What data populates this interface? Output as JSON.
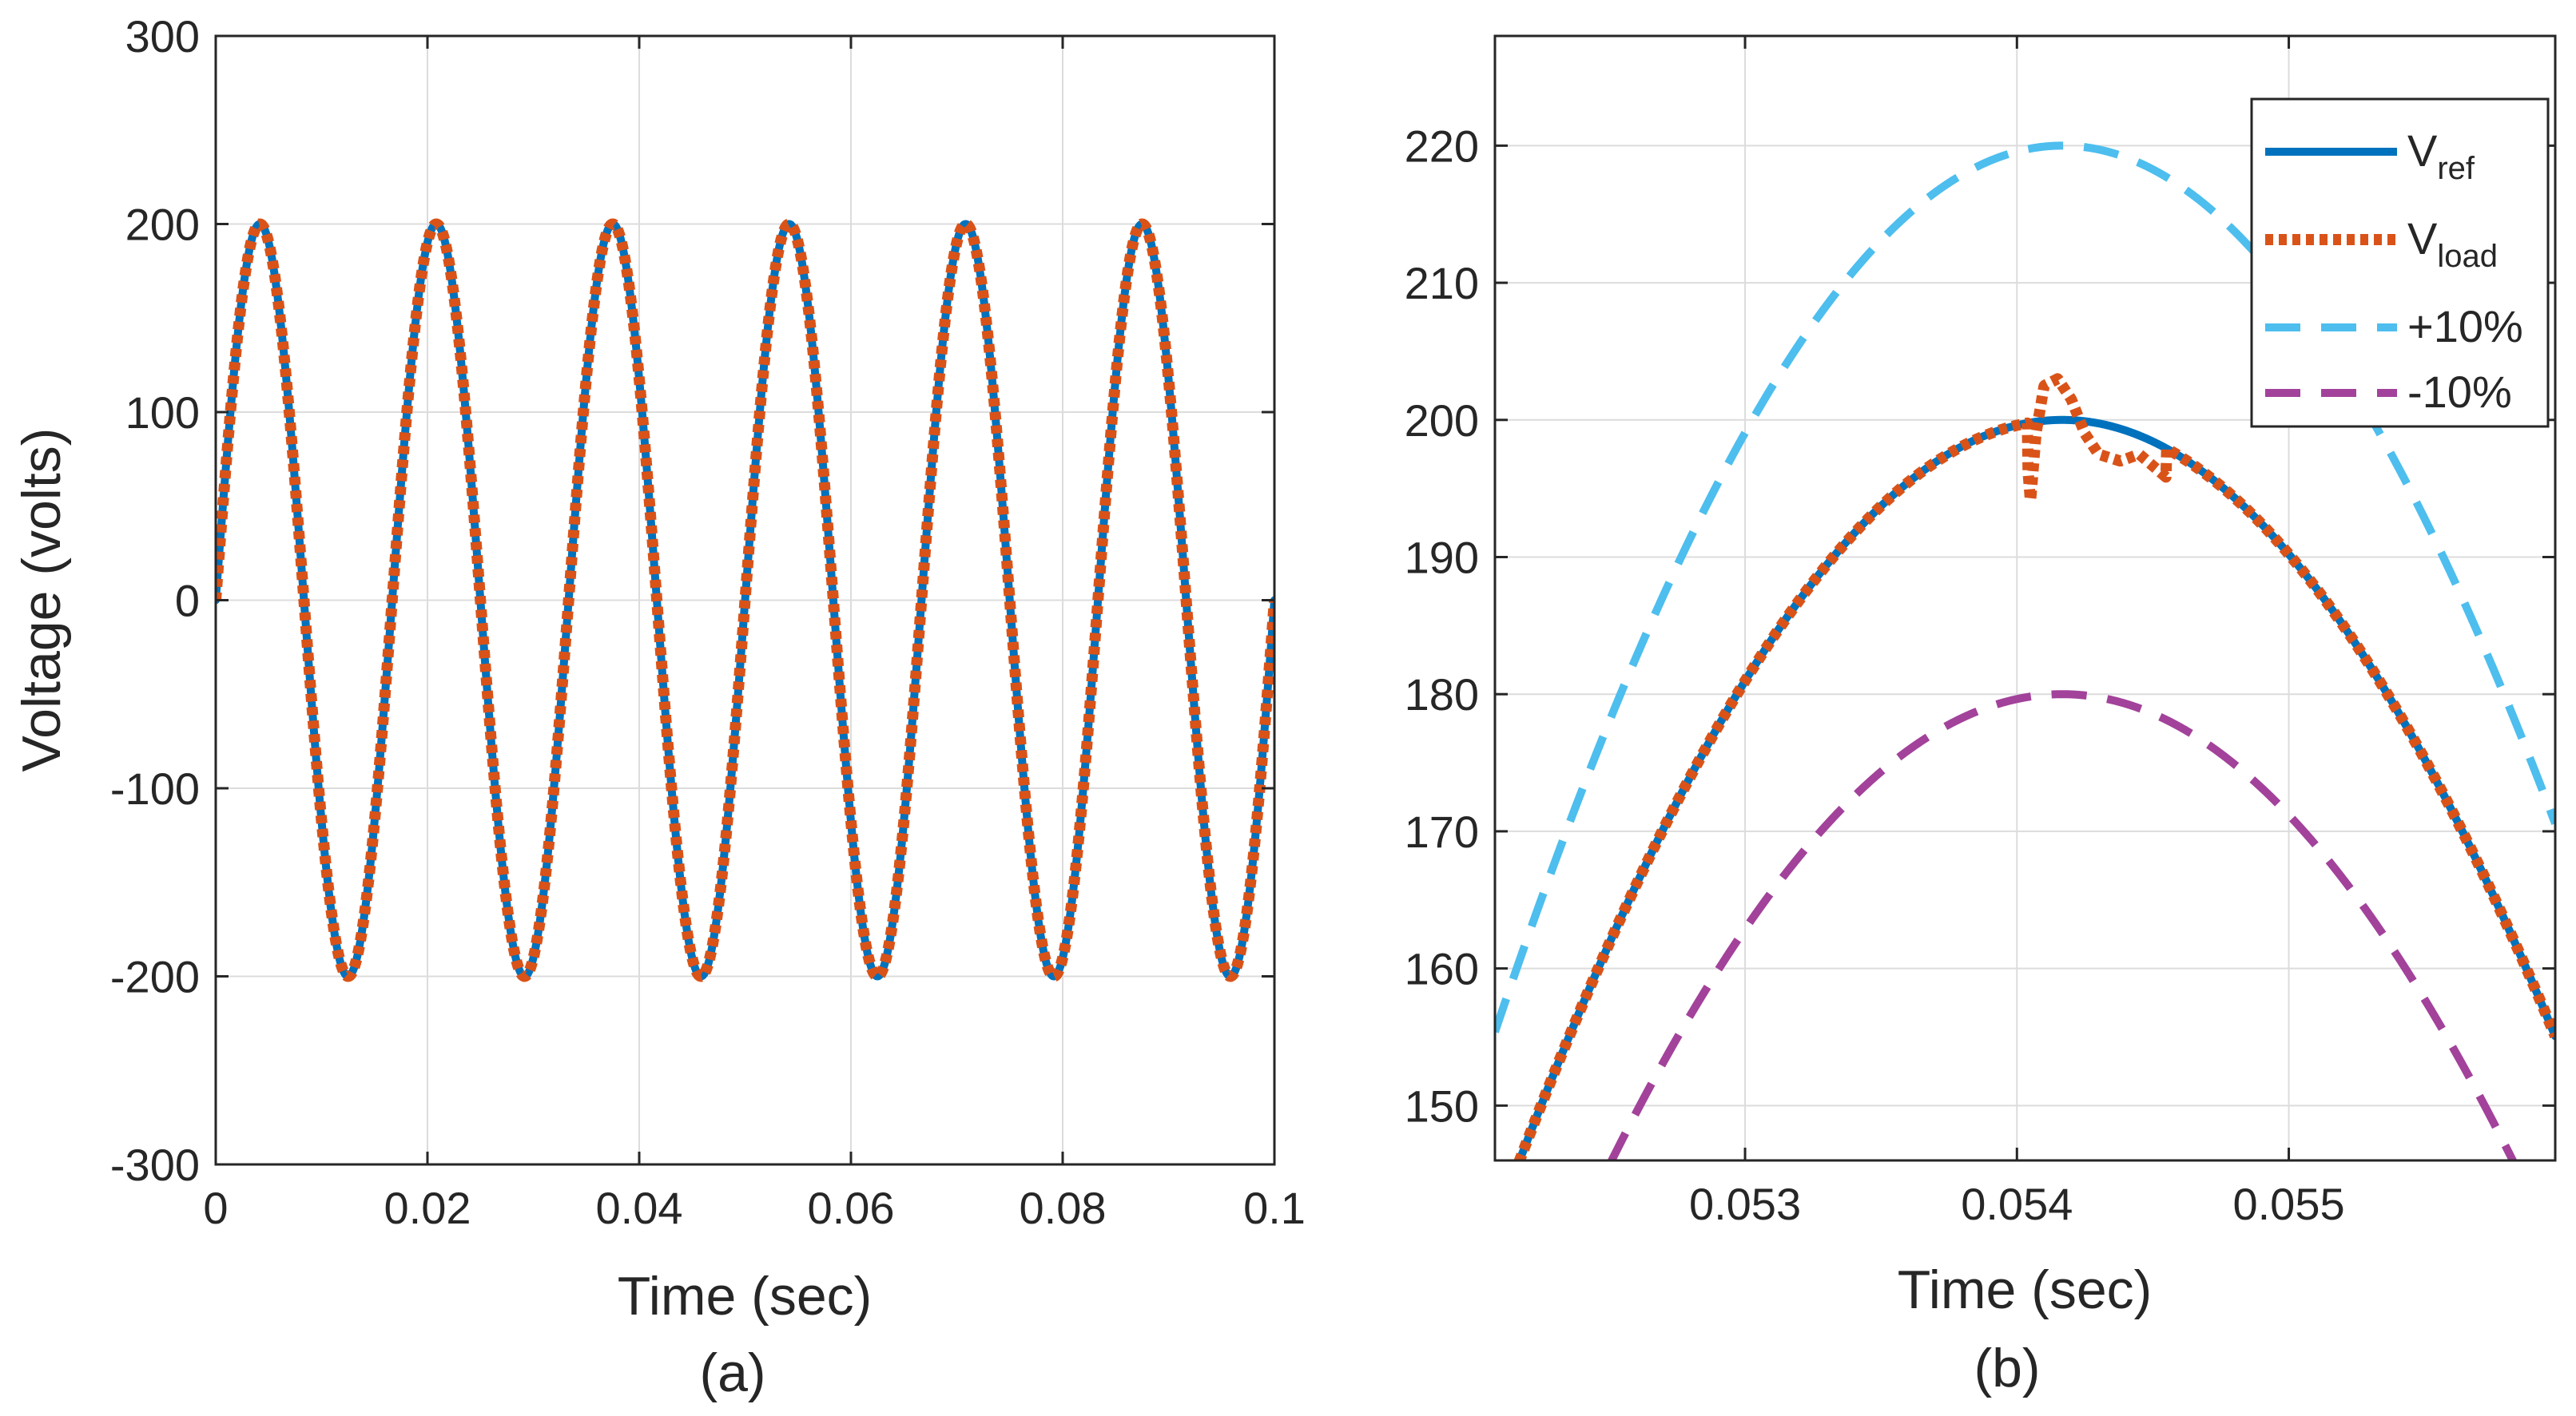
{
  "chart_data": [
    {
      "panel": "a",
      "type": "line",
      "caption": "(a)",
      "xlabel": "Time (sec)",
      "ylabel": "Voltage (volts)",
      "xlim": [
        0,
        0.1
      ],
      "ylim": [
        -300,
        300
      ],
      "xticks": [
        0,
        0.02,
        0.04,
        0.06,
        0.08,
        0.1
      ],
      "xtick_labels": [
        "0",
        "0.02",
        "0.04",
        "0.06",
        "0.08",
        "0.1"
      ],
      "yticks": [
        -300,
        -200,
        -100,
        0,
        100,
        200,
        300
      ],
      "ytick_labels": [
        "-300",
        "-200",
        "-100",
        "0",
        "100",
        "200",
        "300"
      ],
      "grid": true,
      "series": [
        {
          "name": "Vref",
          "style": "solid",
          "color": "#0072BD",
          "amplitude": 200,
          "frequency_hz": 60,
          "phase": 0,
          "x_range": [
            0,
            0.1
          ]
        },
        {
          "name": "Vload",
          "style": "dotted",
          "color": "#D95319",
          "amplitude": 200,
          "frequency_hz": 60,
          "phase": 0,
          "x_range": [
            0,
            0.1
          ]
        }
      ]
    },
    {
      "panel": "b",
      "type": "line",
      "caption": "(b)",
      "xlabel": "Time (sec)",
      "ylabel": "",
      "xlim": [
        0.05208,
        0.05598
      ],
      "ylim": [
        146,
        228
      ],
      "xticks": [
        0.053,
        0.054,
        0.055
      ],
      "xtick_labels": [
        "0.053",
        "0.054",
        "0.055"
      ],
      "yticks": [
        150,
        160,
        170,
        180,
        190,
        200,
        210,
        220
      ],
      "ytick_labels": [
        "150",
        "160",
        "170",
        "180",
        "190",
        "200",
        "210",
        "220"
      ],
      "grid": true,
      "legend": {
        "location": "top-right",
        "entries": [
          {
            "base": "V",
            "sub": "ref",
            "series": 0
          },
          {
            "base": "V",
            "sub": "load",
            "series": 1
          },
          {
            "base": "+10%",
            "sub": "",
            "series": 2
          },
          {
            "base": "-10%",
            "sub": "",
            "series": 3
          }
        ]
      },
      "series": [
        {
          "name": "Vref",
          "style": "solid",
          "color": "#0072BD",
          "amplitude": 200,
          "frequency_hz": 60,
          "phase": 0,
          "x_range": [
            0.05208,
            0.05598
          ]
        },
        {
          "name": "Vload",
          "style": "dotted",
          "color": "#D95319",
          "amplitude": 200,
          "frequency_hz": 60,
          "phase": 0,
          "x_range": [
            0.05208,
            0.05598
          ],
          "disturbance": {
            "x": [
              0.05404,
              0.05405,
              0.05407,
              0.0541,
              0.05415,
              0.0542,
              0.05425,
              0.0543,
              0.05438,
              0.05445,
              0.05455
            ],
            "y": [
              196.5,
              194.0,
              199.0,
              202.5,
              203.0,
              201.5,
              199.0,
              197.5,
              197.0,
              197.5,
              195.8
            ]
          }
        },
        {
          "name": "+10%",
          "style": "dashed",
          "color": "#4DBEEE",
          "amplitude": 220,
          "frequency_hz": 60,
          "phase": 0,
          "x_range": [
            0.05208,
            0.05598
          ]
        },
        {
          "name": "-10%",
          "style": "dashed",
          "color": "#A2429A",
          "amplitude": 180,
          "frequency_hz": 60,
          "phase": 0,
          "x_range": [
            0.05208,
            0.05598
          ]
        }
      ]
    }
  ]
}
